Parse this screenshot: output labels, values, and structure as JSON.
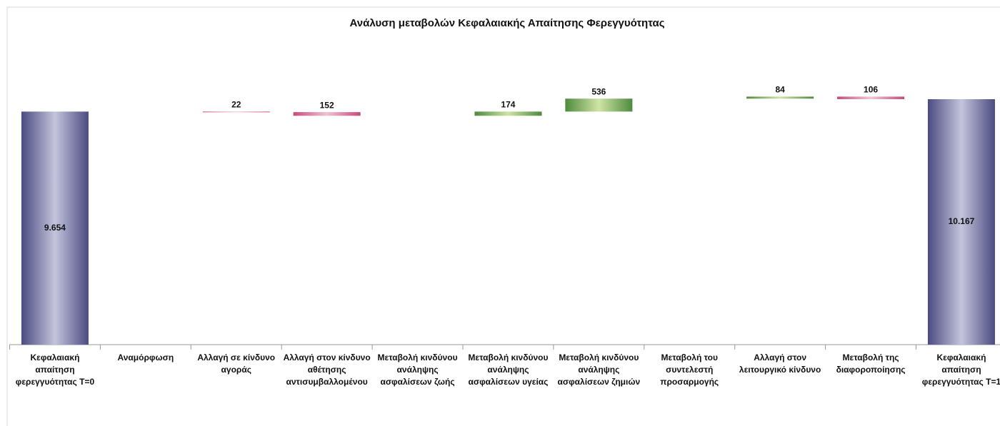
{
  "chart_data": {
    "type": "waterfall",
    "title": "Ανάλυση μεταβολών Κεφαλαιακής Απαίτησης Φερεγγυότητας",
    "categories": [
      "Κεφαλαιακή απαίτηση φερεγγυότητας T=0",
      "Αναμόρφωση",
      "Αλλαγή σε κίνδυνο αγοράς",
      "Αλλαγή στον κίνδυνο αθέτησης αντισυμβαλλομένου",
      "Μεταβολή κινδύνου ανάληψης ασφαλίσεων ζωής",
      "Μεταβολή κινδύνου ανάληψης ασφαλίσεων υγείας",
      "Μεταβολή κινδύνου ανάληψης ασφαλίσεων ζημιών",
      "Μεταβολή του συντελεστή προσαρμογής",
      "Αλλαγή στον λειτουργικό κίνδυνο",
      "Μεταβολή της διαφοροποίησης",
      "Κεφαλαιακή απαίτηση φερεγγυότητας T=1"
    ],
    "values": [
      9654,
      null,
      -22,
      -152,
      null,
      174,
      536,
      null,
      84,
      -106,
      10167
    ],
    "value_labels": [
      "9.654",
      null,
      "22",
      "152",
      null,
      "174",
      "536",
      null,
      "84",
      "106",
      "10.167"
    ],
    "colors": {
      "total": [
        "#4b4b82",
        "#c4c4dc"
      ],
      "increase": [
        "#4e8a3c",
        "#cfe4a6"
      ],
      "decrease": [
        "#c8487a",
        "#f0c4d4"
      ]
    },
    "ylim": [
      0,
      12000
    ]
  }
}
